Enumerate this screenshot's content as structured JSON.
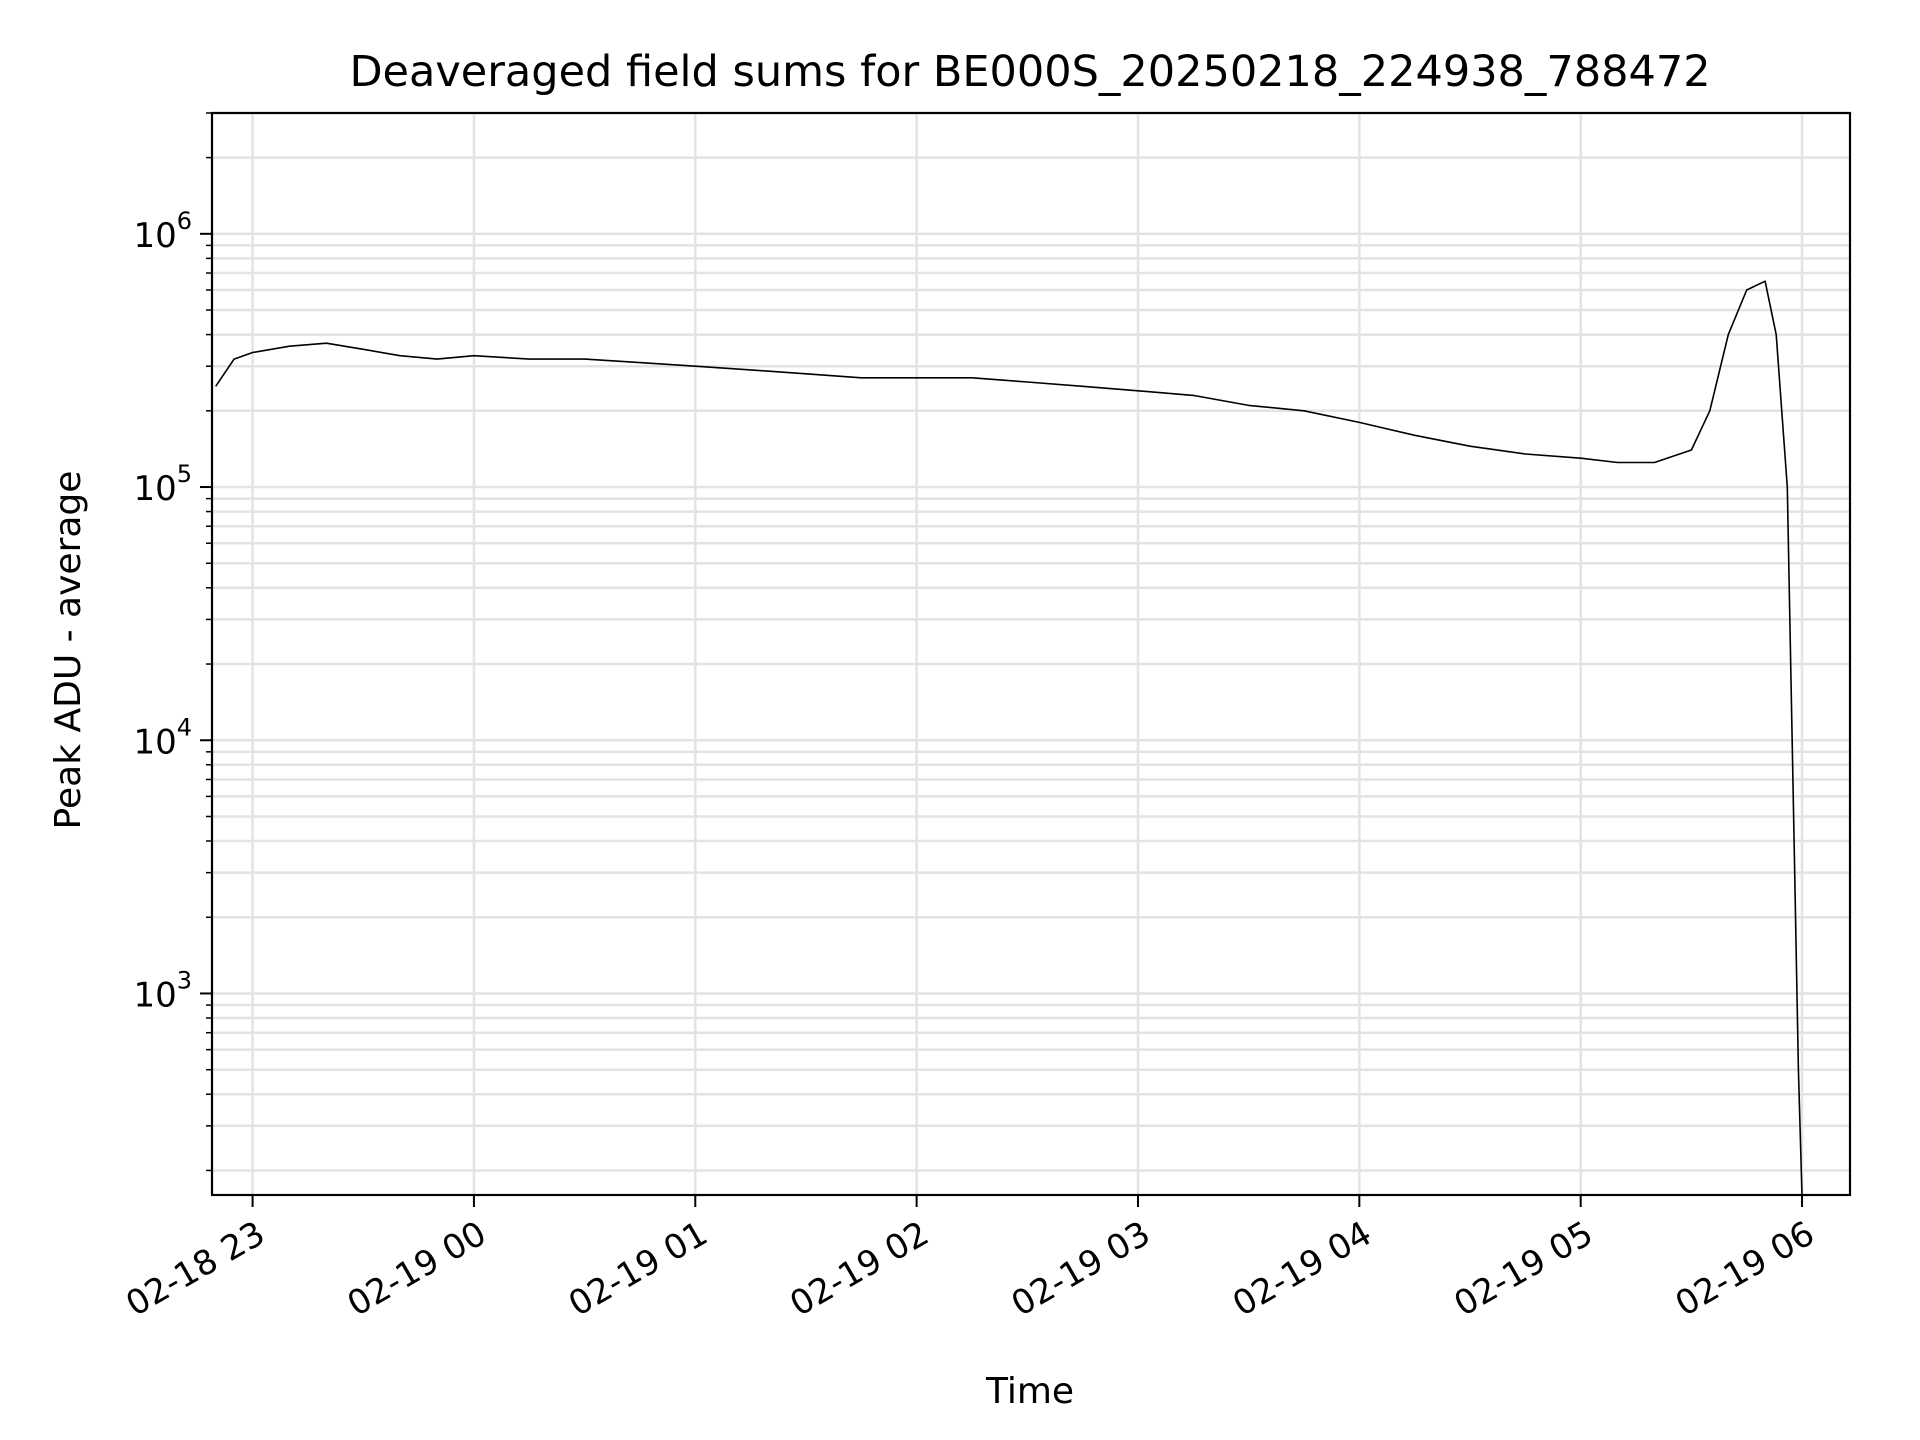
{
  "chart_data": {
    "type": "line",
    "title": "Deaveraged field sums for BE000S_20250218_224938_788472",
    "xlabel": "Time",
    "ylabel": "Peak ADU - average",
    "yscale": "log",
    "grid": true,
    "xlim": [
      "2025-02-18 22:49",
      "2025-02-19 06:13"
    ],
    "ylim": [
      160,
      3000000
    ],
    "x_ticks": [
      {
        "value": "2025-02-18 23:00",
        "label": "02-18 23"
      },
      {
        "value": "2025-02-19 00:00",
        "label": "02-19 00"
      },
      {
        "value": "2025-02-19 01:00",
        "label": "02-19 01"
      },
      {
        "value": "2025-02-19 02:00",
        "label": "02-19 02"
      },
      {
        "value": "2025-02-19 03:00",
        "label": "02-19 03"
      },
      {
        "value": "2025-02-19 04:00",
        "label": "02-19 04"
      },
      {
        "value": "2025-02-19 05:00",
        "label": "02-19 05"
      },
      {
        "value": "2025-02-19 06:00",
        "label": "02-19 06"
      }
    ],
    "y_ticks": [
      {
        "value": 1000,
        "base": "10",
        "exp": "3"
      },
      {
        "value": 10000,
        "base": "10",
        "exp": "4"
      },
      {
        "value": 100000,
        "base": "10",
        "exp": "5"
      },
      {
        "value": 1000000,
        "base": "10",
        "exp": "6"
      }
    ],
    "series": [
      {
        "color": "#000000",
        "x": [
          "2025-02-18 22:50",
          "2025-02-18 22:55",
          "2025-02-18 23:00",
          "2025-02-18 23:10",
          "2025-02-18 23:20",
          "2025-02-18 23:30",
          "2025-02-18 23:40",
          "2025-02-18 23:50",
          "2025-02-19 00:00",
          "2025-02-19 00:15",
          "2025-02-19 00:30",
          "2025-02-19 00:45",
          "2025-02-19 01:00",
          "2025-02-19 01:15",
          "2025-02-19 01:30",
          "2025-02-19 01:45",
          "2025-02-19 02:00",
          "2025-02-19 02:15",
          "2025-02-19 02:30",
          "2025-02-19 02:45",
          "2025-02-19 03:00",
          "2025-02-19 03:15",
          "2025-02-19 03:30",
          "2025-02-19 03:45",
          "2025-02-19 04:00",
          "2025-02-19 04:15",
          "2025-02-19 04:30",
          "2025-02-19 04:45",
          "2025-02-19 05:00",
          "2025-02-19 05:10",
          "2025-02-19 05:20",
          "2025-02-19 05:30",
          "2025-02-19 05:35",
          "2025-02-19 05:40",
          "2025-02-19 05:45",
          "2025-02-19 05:50",
          "2025-02-19 05:53",
          "2025-02-19 05:56",
          "2025-02-19 05:58",
          "2025-02-19 05:59",
          "2025-02-19 06:00"
        ],
        "y": [
          250000,
          320000,
          340000,
          360000,
          370000,
          350000,
          330000,
          320000,
          330000,
          320000,
          320000,
          310000,
          300000,
          290000,
          280000,
          270000,
          270000,
          270000,
          260000,
          250000,
          240000,
          230000,
          210000,
          200000,
          180000,
          160000,
          145000,
          135000,
          130000,
          125000,
          125000,
          140000,
          200000,
          400000,
          600000,
          650000,
          400000,
          100000,
          3000,
          500,
          160
        ]
      }
    ]
  }
}
